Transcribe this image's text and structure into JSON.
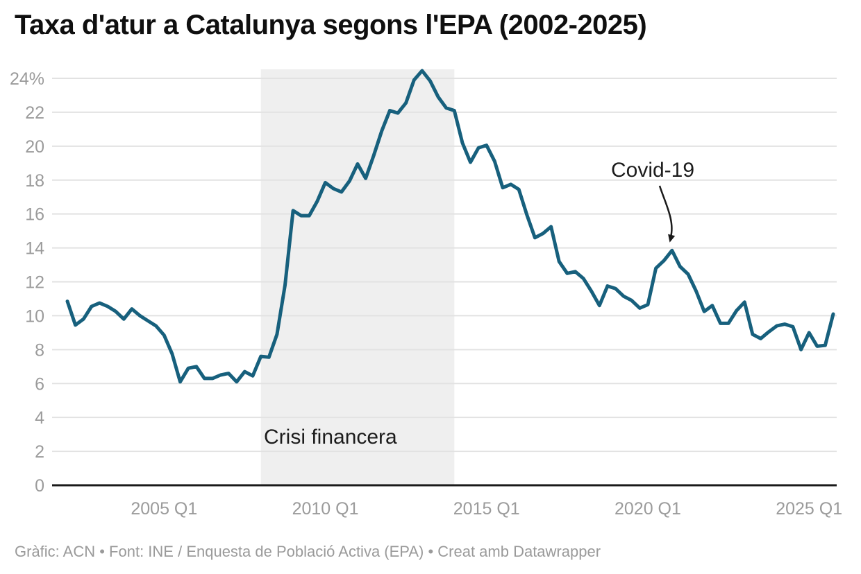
{
  "title": "Taxa d'atur a Catalunya segons l'EPA (2002-2025)",
  "footer": {
    "text": "Gràfic: ACN • Font: INE / Enquesta de Població Activa (EPA) • Creat amb Datawrapper"
  },
  "chart_data": {
    "type": "line",
    "title": "Taxa d'atur a Catalunya segons l'EPA (2002-2025)",
    "unit": "%",
    "frequency": "quarterly",
    "x_start": "2002 Q1",
    "x_end": "2025 Q4",
    "values": [
      10.85,
      9.45,
      9.8,
      10.55,
      10.75,
      10.55,
      10.25,
      9.8,
      10.4,
      10.0,
      9.7,
      9.4,
      8.85,
      7.75,
      6.1,
      6.9,
      7.0,
      6.3,
      6.3,
      6.5,
      6.6,
      6.1,
      6.7,
      6.45,
      7.6,
      7.55,
      8.9,
      11.8,
      16.2,
      15.9,
      15.9,
      16.75,
      17.85,
      17.5,
      17.3,
      17.95,
      18.95,
      18.1,
      19.45,
      20.9,
      22.1,
      21.95,
      22.55,
      23.9,
      24.45,
      23.85,
      22.9,
      22.25,
      22.1,
      20.2,
      19.05,
      19.9,
      20.05,
      19.1,
      17.55,
      17.75,
      17.45,
      15.95,
      14.6,
      14.85,
      15.25,
      13.2,
      12.5,
      12.6,
      12.2,
      11.45,
      10.6,
      11.75,
      11.6,
      11.15,
      10.9,
      10.45,
      10.65,
      12.8,
      13.25,
      13.85,
      12.9,
      12.45,
      11.45,
      10.25,
      10.6,
      9.55,
      9.55,
      10.3,
      10.8,
      8.9,
      8.65,
      9.05,
      9.4,
      9.5,
      9.35,
      8.0,
      9.0,
      8.2,
      8.25,
      10.1
    ],
    "ylim": [
      0,
      24
    ],
    "y_ticks": [
      0,
      2,
      4,
      6,
      8,
      10,
      12,
      14,
      16,
      18,
      20,
      22,
      24
    ],
    "y_top_tick_label": "24%",
    "x_tick_labels": [
      "2005 Q1",
      "2010 Q1",
      "2015 Q1",
      "2020 Q1",
      "2025 Q1"
    ],
    "x_tick_indices": [
      12,
      32,
      52,
      72,
      92
    ],
    "grid": "horizontal",
    "shaded_region": {
      "label": "Crisi financera",
      "from": "2008 Q1",
      "to": "2014 Q1",
      "from_index": 24,
      "to_index": 48
    },
    "covid_annotation": {
      "label": "Covid-19",
      "at": "2020 Q4",
      "at_index": 75,
      "value": 13.85
    },
    "colors": {
      "line": "#17607d",
      "band": "#efefef",
      "grid": "#e2e2e2",
      "axis": "#1a1a1a",
      "tick_text": "#9b9b9b",
      "annotation_text": "#1c1c1c"
    }
  }
}
